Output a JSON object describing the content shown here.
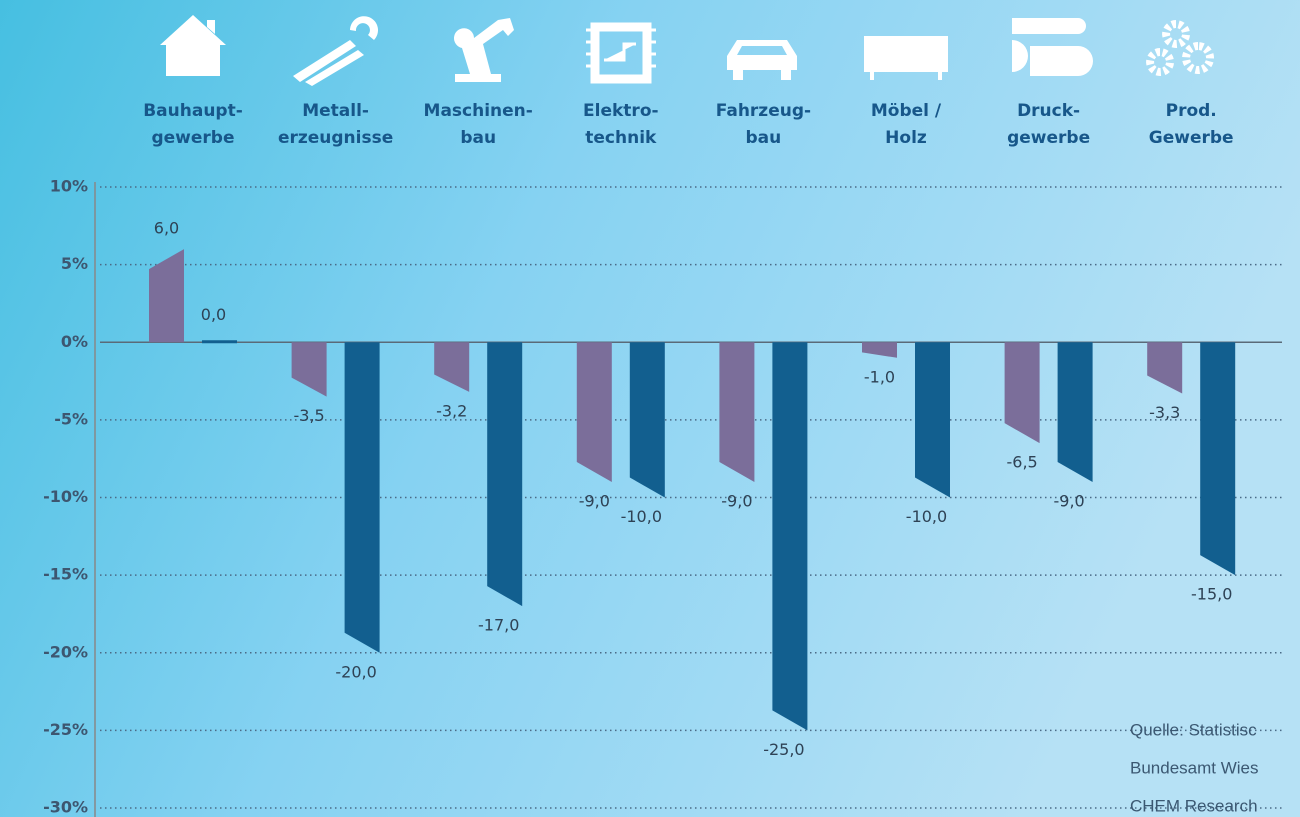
{
  "chart_data": {
    "type": "bar",
    "categories": [
      [
        "Bauhaupt-",
        "gewerbe"
      ],
      [
        "Metall-",
        "erzeugnisse"
      ],
      [
        "Maschinen-",
        "bau"
      ],
      [
        "Elektro-",
        "technik"
      ],
      [
        "Fahrzeug-",
        "bau"
      ],
      [
        "Möbel /",
        "Holz"
      ],
      [
        "Druck-",
        "gewerbe"
      ],
      [
        "Prod.",
        "Gewerbe"
      ]
    ],
    "series": [
      {
        "color": "#7b6e9a",
        "values": [
          6.0,
          -3.5,
          -3.2,
          -9.0,
          -9.0,
          -1.0,
          -6.5,
          -3.3
        ],
        "value_labels": [
          "6,0",
          "-3,5",
          "-3,2",
          "-9,0",
          "-9,0",
          "-1,0",
          "-6,5",
          "-3,3"
        ]
      },
      {
        "color": "#125f8f",
        "values": [
          0.0,
          -20.0,
          -17.0,
          -10.0,
          -25.0,
          -10.0,
          -9.0,
          -15.0
        ],
        "value_labels": [
          "0,0",
          "-20,0",
          "-17,0",
          "-10,0",
          "-25,0",
          "-10,0",
          "-9,0",
          "-15,0"
        ]
      }
    ],
    "ylim": [
      -30,
      10
    ],
    "yticks": [
      {
        "value": 10,
        "label": "10%"
      },
      {
        "value": 5,
        "label": "5%"
      },
      {
        "value": 0,
        "label": "0%"
      },
      {
        "value": -5,
        "label": "-5%"
      },
      {
        "value": -10,
        "label": "-10%"
      },
      {
        "value": -15,
        "label": "-15%"
      },
      {
        "value": -20,
        "label": "-20%"
      },
      {
        "value": -25,
        "label": "-25%"
      },
      {
        "value": -30,
        "label": "-30%"
      }
    ],
    "grid": true,
    "source": [
      "Quelle: Statistisc",
      "Bundesamt Wies",
      "CHEM Research"
    ]
  }
}
